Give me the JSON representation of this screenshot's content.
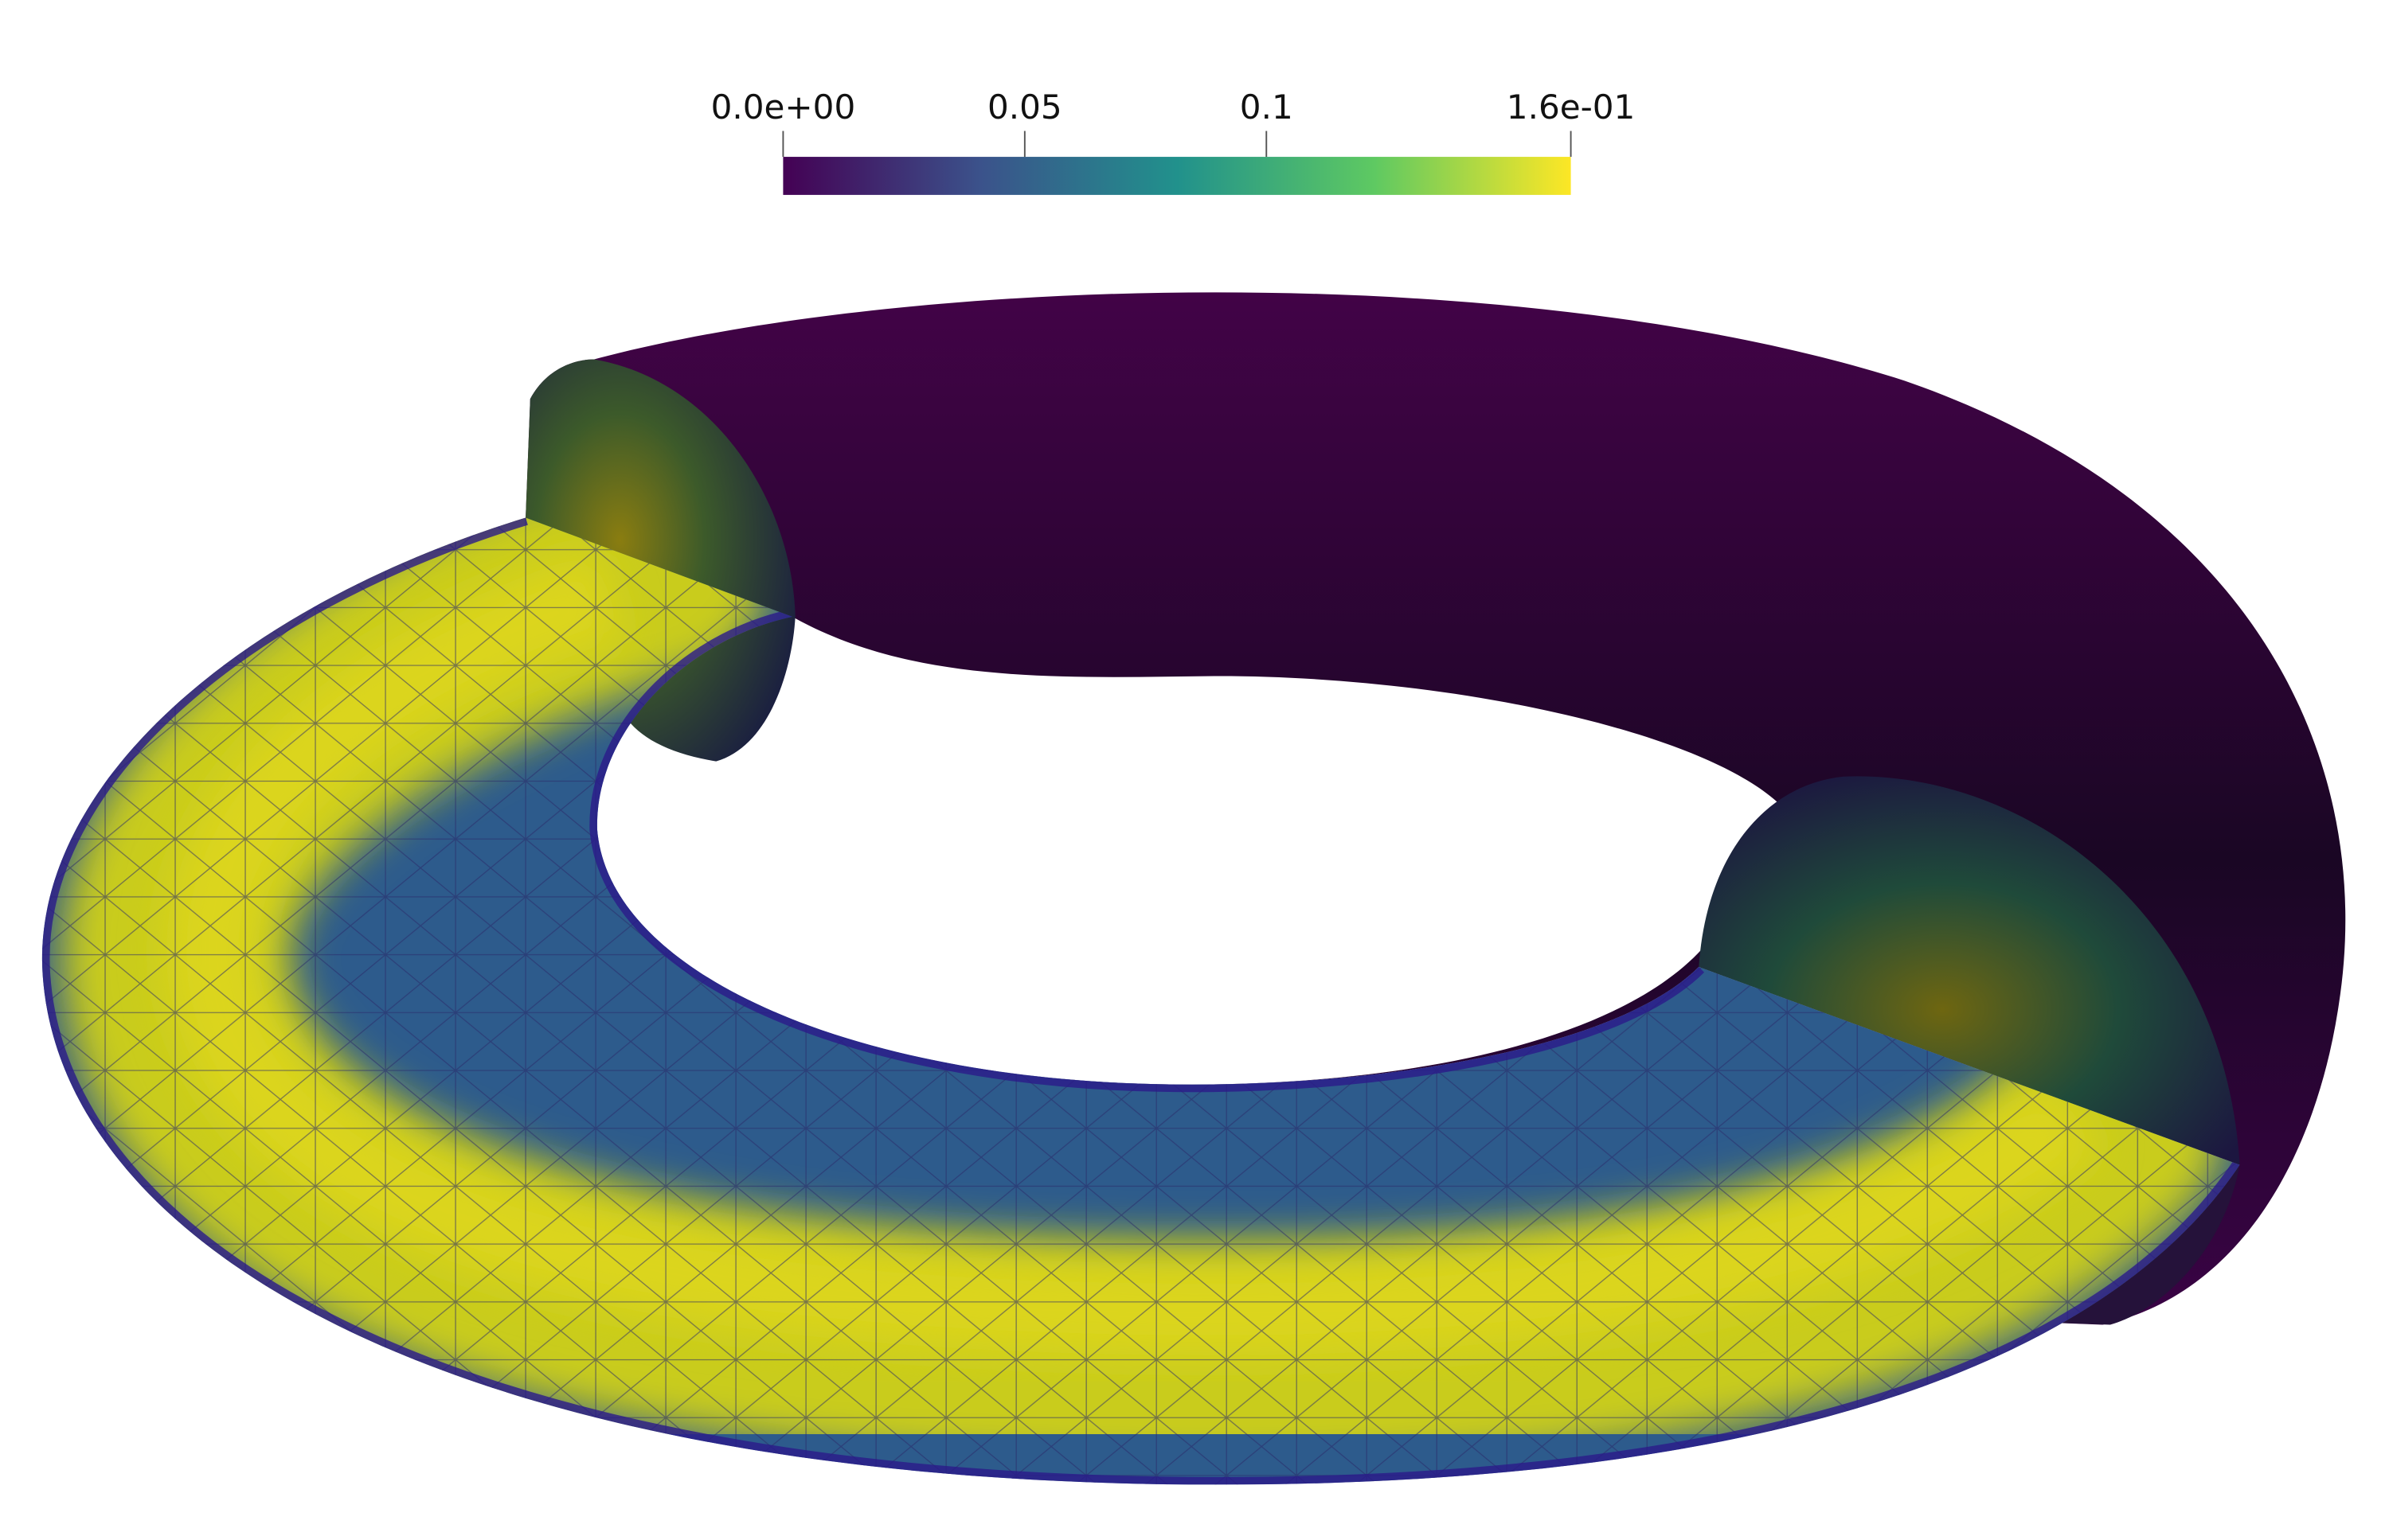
{
  "colorbar": {
    "range": [
      0,
      0.163
    ],
    "ticks": [
      {
        "value": 0,
        "label": "0.0e+00"
      },
      0.05,
      0.1,
      {
        "value": 0.163,
        "label": "1.6e-01"
      }
    ],
    "colormap": [
      "#440154",
      "#3b528b",
      "#21918c",
      "#5ec962",
      "#fde725"
    ]
  }
}
